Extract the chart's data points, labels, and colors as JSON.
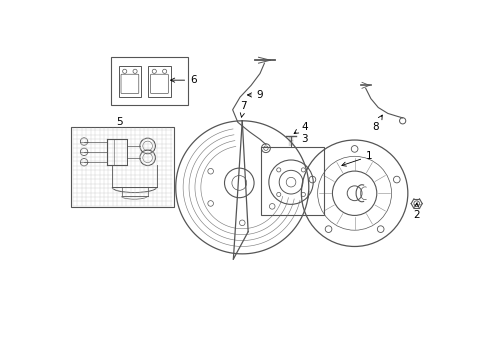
{
  "bg_color": "#ffffff",
  "line_color": "#555555",
  "fig_width": 4.9,
  "fig_height": 3.6,
  "dpi": 100,
  "xlim": [
    0,
    5.0
  ],
  "ylim": [
    0,
    3.75
  ]
}
